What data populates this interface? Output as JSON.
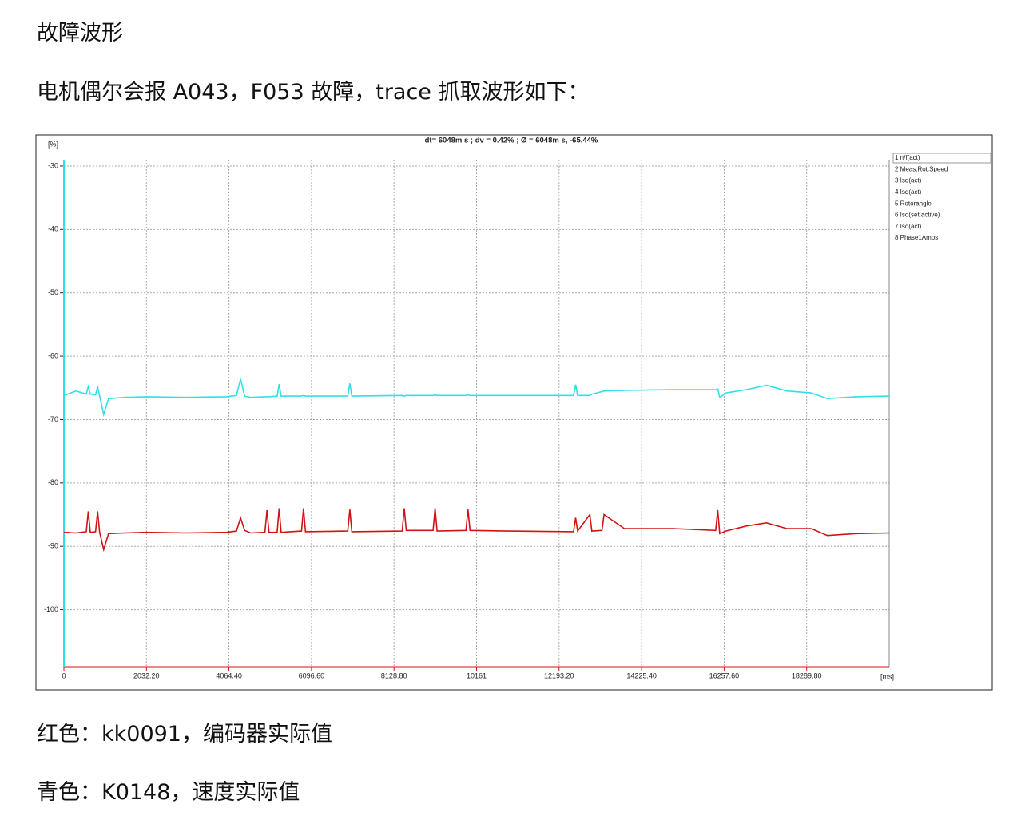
{
  "heading": "故障波形",
  "intro": "电机偶尔会报 A043，F053 故障，trace 抓取波形如下：",
  "chart_data": {
    "type": "line",
    "title": "dt= 6048m s ; dv = 0.42% ; Ø = 6048m s, -65.44%",
    "y_unit": "[%]",
    "x_unit": "[ms]",
    "xlim": [
      0,
      20322
    ],
    "ylim": [
      -109,
      -29
    ],
    "yticks": [
      -30,
      -40,
      -50,
      -60,
      -70,
      -80,
      -90,
      -100
    ],
    "xticks": [
      0,
      {
        "value": 2032.2,
        "label": "2032.20"
      },
      {
        "value": 4064.4,
        "label": "4064.40"
      },
      {
        "value": 6096.6,
        "label": "6096.60"
      },
      {
        "value": 8128.8,
        "label": "8128.80"
      },
      10161,
      {
        "value": 12193.2,
        "label": "12193.20"
      },
      {
        "value": 14225.4,
        "label": "14225.40"
      },
      {
        "value": 16257.6,
        "label": "16257.60"
      },
      {
        "value": 18289.8,
        "label": "18289.80"
      }
    ],
    "grid": true,
    "x": [
      0,
      300,
      550,
      600,
      650,
      780,
      830,
      880,
      980,
      1100,
      1500,
      2032,
      3000,
      4000,
      4250,
      4350,
      4450,
      4600,
      4950,
      5000,
      5050,
      5250,
      5300,
      5350,
      5850,
      5900,
      5950,
      6990,
      7040,
      7090,
      8330,
      8380,
      8430,
      9090,
      9140,
      9190,
      9900,
      9950,
      10000,
      11000,
      12550,
      12600,
      12650,
      12950,
      13000,
      13250,
      13300,
      13800,
      15000,
      16050,
      16100,
      16150,
      16300,
      16800,
      17300,
      17800,
      18400,
      18800,
      19500,
      20322
    ],
    "series": [
      {
        "name": "1 n/f(act)",
        "color": "#2fe0e8",
        "values": [
          -66.2,
          -65.5,
          -66.0,
          -64.8,
          -66.0,
          -66.1,
          -64.8,
          -66.3,
          -69.2,
          -66.7,
          -66.5,
          -66.4,
          -66.5,
          -66.4,
          -66.2,
          -63.6,
          -66.3,
          -66.5,
          -66.4,
          -66.4,
          -66.4,
          -66.3,
          -64.4,
          -66.3,
          -66.3,
          -66.2,
          -66.3,
          -66.3,
          -64.3,
          -66.3,
          -66.2,
          -66.3,
          -66.2,
          -66.2,
          -66.1,
          -66.2,
          -66.2,
          -66.1,
          -66.2,
          -66.2,
          -66.2,
          -64.5,
          -66.2,
          -66.2,
          -66.0,
          -65.6,
          -65.5,
          -65.4,
          -65.3,
          -65.3,
          -65.2,
          -66.5,
          -65.8,
          -65.3,
          -64.6,
          -65.5,
          -65.8,
          -66.7,
          -66.4,
          -66.3
        ]
      },
      {
        "name": "2 Meas.Rot.Speed",
        "color": "#d01414",
        "values": [
          -87.8,
          -87.9,
          -87.7,
          -84.5,
          -87.8,
          -87.7,
          -84.5,
          -87.8,
          -90.5,
          -88.0,
          -87.9,
          -87.8,
          -87.9,
          -87.8,
          -87.6,
          -85.5,
          -87.5,
          -87.9,
          -87.8,
          -84.3,
          -87.8,
          -87.8,
          -84.0,
          -87.8,
          -87.6,
          -84.0,
          -87.7,
          -87.6,
          -84.2,
          -87.7,
          -87.6,
          -84.0,
          -87.5,
          -87.5,
          -84.0,
          -87.6,
          -87.5,
          -84.2,
          -87.5,
          -87.6,
          -87.7,
          -85.5,
          -87.6,
          -85.0,
          -87.6,
          -87.5,
          -85.0,
          -87.2,
          -87.2,
          -87.5,
          -84.3,
          -88.0,
          -87.6,
          -86.8,
          -86.3,
          -87.2,
          -87.2,
          -88.3,
          -88.0,
          -87.9
        ]
      }
    ],
    "other_legend_entries": [
      {
        "label": "3 Isd(act)",
        "color": "#e08a1e"
      },
      {
        "label": "4 Isq(act)",
        "color": "#e8e020"
      },
      {
        "label": "5 Rotorangle",
        "color": "#30d030"
      },
      {
        "label": "6 Isd(set,active)",
        "color": "#1020a0"
      },
      {
        "label": "7 Isq(act)",
        "color": "#b020c0"
      },
      {
        "label": "8 Phase1Amps",
        "color": "#888888"
      }
    ]
  },
  "notes": [
    "红色：kk0091，编码器实际值",
    "青色：K0148，速度实际值"
  ]
}
